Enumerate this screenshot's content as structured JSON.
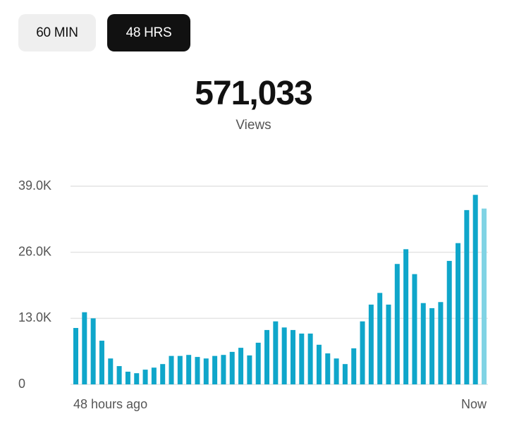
{
  "buttons": [
    "60 MIN",
    "48 HRS"
  ],
  "metric": {
    "value": "571,033",
    "label": "Views"
  },
  "chart_data": {
    "type": "bar",
    "categories": [
      "48 hours ago",
      null,
      null,
      null,
      null,
      null,
      null,
      null,
      null,
      null,
      null,
      null,
      null,
      null,
      null,
      null,
      null,
      null,
      null,
      null,
      null,
      null,
      null,
      null,
      null,
      null,
      null,
      null,
      null,
      null,
      null,
      null,
      null,
      null,
      null,
      null,
      null,
      null,
      null,
      null,
      null,
      null,
      null,
      null,
      null,
      null,
      null,
      "Now"
    ],
    "values": [
      11100,
      14200,
      13000,
      8600,
      5100,
      3600,
      2500,
      2200,
      2900,
      3300,
      4000,
      5600,
      5600,
      5800,
      5400,
      5100,
      5600,
      5800,
      6400,
      7200,
      5700,
      8200,
      10700,
      12400,
      11200,
      10700,
      10000,
      10000,
      7800,
      6100,
      5100,
      4000,
      7100,
      12400,
      15700,
      18000,
      15700,
      23700,
      26600,
      21700,
      16000,
      15000,
      16200,
      24300,
      27800,
      34300,
      37300,
      34600
    ],
    "color": "#0fa6ca",
    "current_color": "#80d3e4",
    "ylim": [
      0,
      39000
    ],
    "yticks": [
      0,
      {
        "value": 13000,
        "label": "13.0K"
      },
      {
        "value": 26000,
        "label": "26.0K"
      },
      {
        "value": 39000,
        "label": "39.0K"
      }
    ],
    "grid": true
  }
}
